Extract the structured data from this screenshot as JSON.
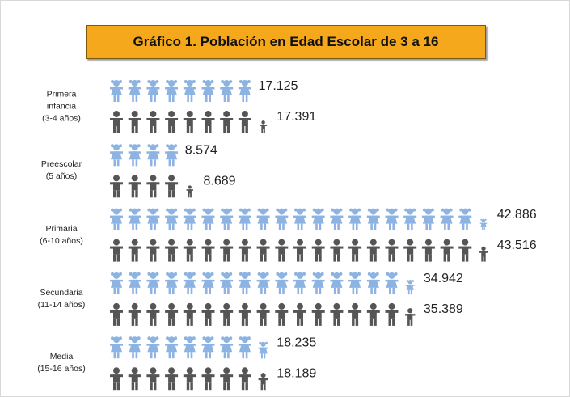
{
  "chart_data": {
    "type": "pictogram",
    "title": "Gráfico 1. Población en Edad Escolar de 3 a 16",
    "categories": [
      "Primera\ninfancia\n(3-4 años)",
      "Preescolar\n(5 años)",
      "Primaria\n(6-10 años)",
      "Secundaria\n(11-14 años)",
      "Media\n(15-16 años)"
    ],
    "series": [
      {
        "color": "#8db3e2",
        "values": [
          17125,
          8574,
          42886,
          34942,
          18235
        ],
        "value_labels": [
          "17.125",
          "8.574",
          "42.886",
          "34.942",
          "18.235"
        ]
      },
      {
        "color": "#555555",
        "values": [
          17391,
          8689,
          43516,
          35389,
          18189
        ],
        "value_labels": [
          "17.391",
          "8.689",
          "43.516",
          "35.389",
          "18.189"
        ]
      }
    ]
  }
}
